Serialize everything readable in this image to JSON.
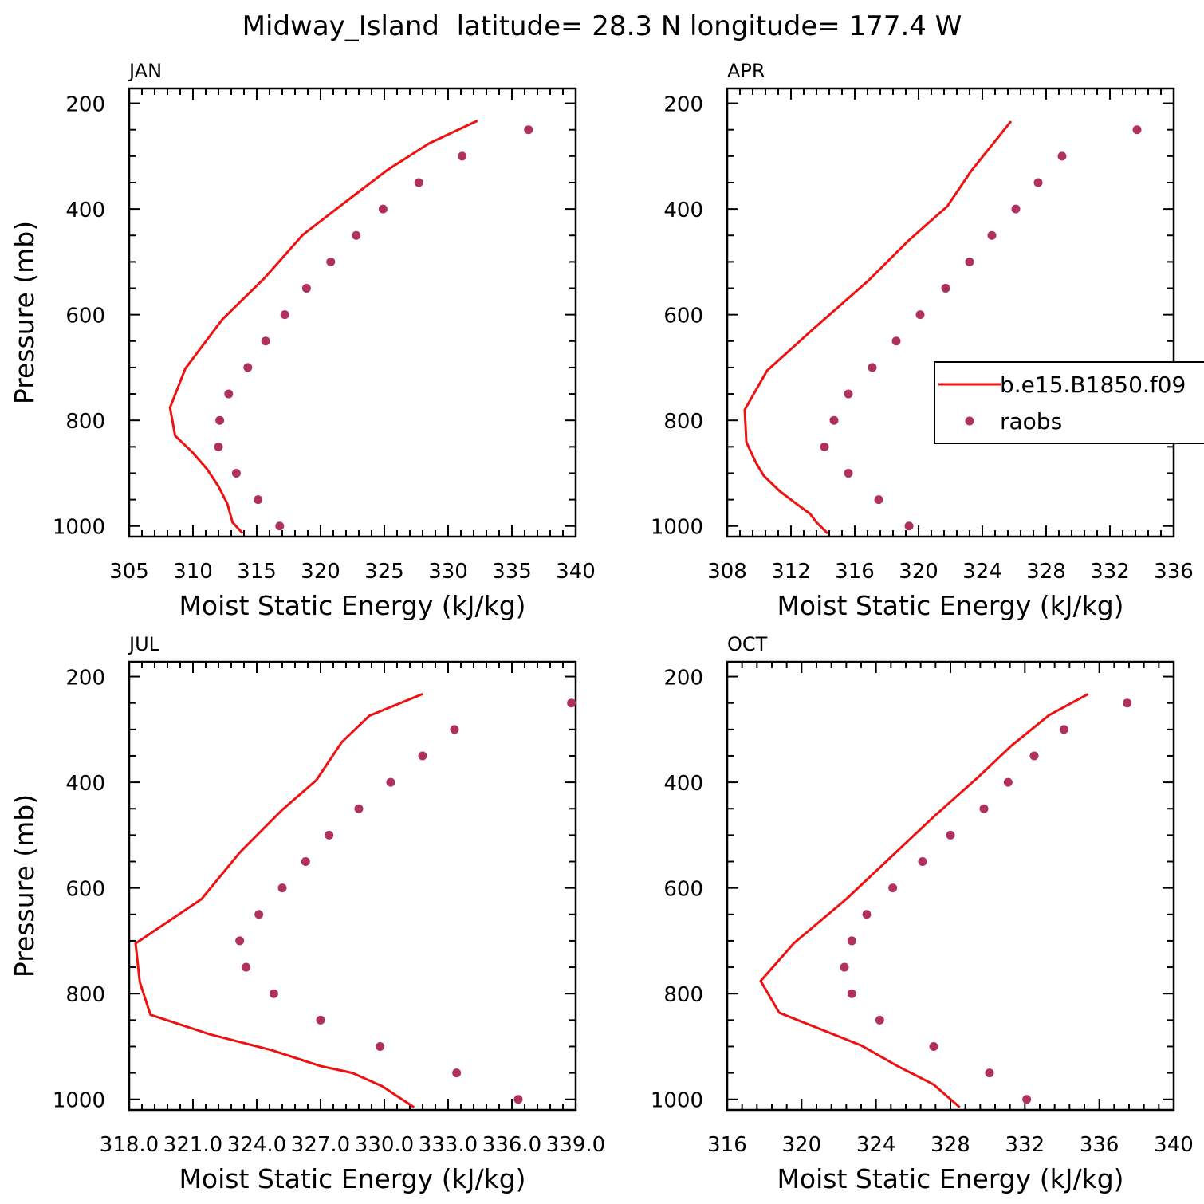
{
  "title": "Midway_Island  latitude= 28.3 N longitude= 177.4 W",
  "colors": {
    "model_line": "#ee1111",
    "obs_marker": "#b03060",
    "axis": "#000000"
  },
  "legend": {
    "entries": [
      "b.e15.B1850.f09",
      "raobs"
    ]
  },
  "chart_data": [
    {
      "type": "line",
      "panel_label": "JAN",
      "xlabel": "Moist Static Energy (kJ/kg)",
      "ylabel": "Pressure (mb)",
      "xlim": [
        305,
        340
      ],
      "ylim": [
        1000,
        200
      ],
      "xticks": [
        "305",
        "310",
        "315",
        "320",
        "325",
        "330",
        "335",
        "340"
      ],
      "xtick_values": [
        305,
        310,
        315,
        320,
        325,
        330,
        335,
        340
      ],
      "yticks": [
        200,
        400,
        600,
        800,
        1000
      ],
      "series": [
        {
          "name": "b.e15.B1850.f09",
          "style": "line",
          "x": [
            313.9,
            313.1,
            312.7,
            312.0,
            311.1,
            309.9,
            308.6,
            308.2,
            309.4,
            312.3,
            315.6,
            318.6,
            322.1,
            325.2,
            328.5,
            332.3
          ],
          "y": [
            1014,
            993,
            958,
            925,
            892,
            859,
            829,
            776,
            702,
            609,
            531,
            449,
            384,
            327,
            276,
            233
          ]
        },
        {
          "name": "raobs",
          "style": "markers",
          "x": [
            316.8,
            315.1,
            313.4,
            312.0,
            312.1,
            312.8,
            314.3,
            315.7,
            317.2,
            318.9,
            320.8,
            322.8,
            324.9,
            327.7,
            331.1,
            336.3
          ],
          "y": [
            1000,
            950,
            900,
            850,
            800,
            750,
            700,
            650,
            600,
            550,
            500,
            450,
            400,
            350,
            300,
            250
          ]
        }
      ]
    },
    {
      "type": "line",
      "panel_label": "APR",
      "xlabel": "Moist Static Energy (kJ/kg)",
      "ylabel": "",
      "xlim": [
        308,
        336
      ],
      "ylim": [
        1000,
        200
      ],
      "xticks": [
        "308",
        "312",
        "316",
        "320",
        "324",
        "328",
        "332",
        "336"
      ],
      "xtick_values": [
        308,
        312,
        316,
        320,
        324,
        328,
        332,
        336
      ],
      "yticks": [
        200,
        400,
        600,
        800,
        1000
      ],
      "series": [
        {
          "name": "b.e15.B1850.f09",
          "style": "line",
          "x": [
            314.3,
            313.6,
            313.2,
            312.3,
            311.3,
            310.3,
            309.8,
            309.2,
            309.1,
            310.5,
            313.4,
            316.8,
            319.4,
            321.8,
            323.3,
            325.8
          ],
          "y": [
            1014,
            993,
            977,
            957,
            934,
            905,
            880,
            841,
            780,
            706,
            627,
            537,
            459,
            395,
            328,
            234
          ]
        },
        {
          "name": "raobs",
          "style": "markers",
          "x": [
            319.4,
            317.5,
            315.6,
            314.1,
            314.7,
            315.6,
            317.1,
            318.6,
            320.1,
            321.7,
            323.2,
            324.6,
            326.1,
            327.5,
            329.0,
            333.7
          ],
          "y": [
            1000,
            950,
            900,
            850,
            800,
            750,
            700,
            650,
            600,
            550,
            500,
            450,
            400,
            350,
            300,
            250
          ]
        }
      ]
    },
    {
      "type": "line",
      "panel_label": "JUL",
      "xlabel": "Moist Static Energy (kJ/kg)",
      "ylabel": "Pressure (mb)",
      "xlim": [
        318.0,
        339.0
      ],
      "ylim": [
        1000,
        200
      ],
      "xticks": [
        "318.0",
        "321.0",
        "324.0",
        "327.0",
        "330.0",
        "333.0",
        "336.0",
        "339.0"
      ],
      "xtick_values": [
        318.0,
        321.0,
        324.0,
        327.0,
        330.0,
        333.0,
        336.0,
        339.0
      ],
      "yticks": [
        200,
        400,
        600,
        800,
        1000
      ],
      "series": [
        {
          "name": "b.e15.B1850.f09",
          "style": "line",
          "x": [
            331.4,
            329.9,
            328.5,
            327.0,
            324.7,
            321.8,
            319.0,
            318.5,
            318.3,
            321.4,
            323.2,
            325.2,
            326.8,
            328.0,
            329.3,
            331.8
          ],
          "y": [
            1015,
            975,
            950,
            937,
            907,
            877,
            840,
            778,
            705,
            621,
            533,
            452,
            396,
            324,
            274,
            233
          ]
        },
        {
          "name": "raobs",
          "style": "markers",
          "x": [
            336.3,
            333.4,
            329.8,
            327.0,
            324.8,
            323.5,
            323.2,
            324.1,
            325.2,
            326.3,
            327.4,
            328.8,
            330.3,
            331.8,
            333.3,
            338.8
          ],
          "y": [
            1000,
            950,
            900,
            850,
            800,
            750,
            700,
            650,
            600,
            550,
            500,
            450,
            400,
            350,
            300,
            250
          ]
        }
      ]
    },
    {
      "type": "line",
      "panel_label": "OCT",
      "xlabel": "Moist Static Energy (kJ/kg)",
      "ylabel": "",
      "xlim": [
        316,
        340
      ],
      "ylim": [
        1000,
        200
      ],
      "xticks": [
        "316",
        "320",
        "324",
        "328",
        "332",
        "336",
        "340"
      ],
      "xtick_values": [
        316,
        320,
        324,
        328,
        332,
        336,
        340
      ],
      "yticks": [
        200,
        400,
        600,
        800,
        1000
      ],
      "series": [
        {
          "name": "b.e15.B1850.f09",
          "style": "line",
          "x": [
            328.5,
            327.1,
            325.1,
            323.2,
            318.8,
            317.8,
            319.6,
            322.4,
            324.9,
            327.2,
            329.5,
            331.3,
            333.3,
            335.4
          ],
          "y": [
            1015,
            972,
            936,
            898,
            836,
            776,
            704,
            621,
            538,
            462,
            390,
            330,
            273,
            233
          ]
        },
        {
          "name": "raobs",
          "style": "markers",
          "x": [
            332.1,
            330.1,
            327.1,
            324.2,
            322.7,
            322.3,
            322.7,
            323.5,
            324.9,
            326.5,
            328.0,
            329.8,
            331.1,
            332.5,
            334.1,
            337.5
          ],
          "y": [
            1000,
            950,
            900,
            850,
            800,
            750,
            700,
            650,
            600,
            550,
            500,
            450,
            400,
            350,
            300,
            250
          ]
        }
      ]
    }
  ]
}
